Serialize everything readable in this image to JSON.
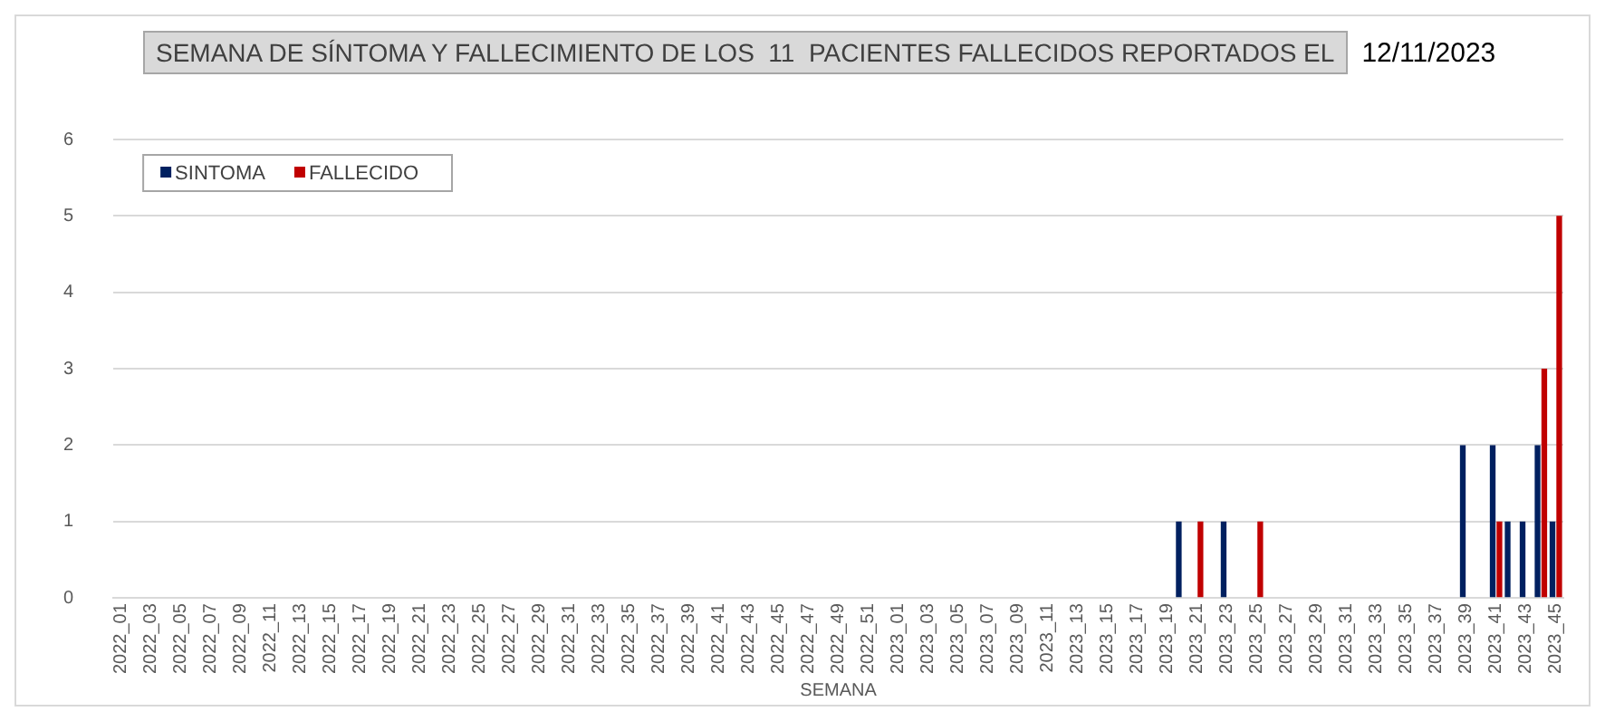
{
  "chart_data": {
    "type": "bar",
    "title": "SEMANA DE SÍNTOMA Y FALLECIMIENTO DE LOS  11  PACIENTES FALLECIDOS REPORTADOS EL",
    "subtitle": "12/11/2023",
    "xlabel": "SEMANA",
    "categories": [
      "2022_01",
      null,
      "2022_03",
      null,
      "2022_05",
      null,
      "2022_07",
      null,
      "2022_09",
      null,
      "2022_11",
      null,
      "2022_13",
      null,
      "2022_15",
      null,
      "2022_17",
      null,
      "2022_19",
      null,
      "2022_21",
      null,
      "2022_23",
      null,
      "2022_25",
      null,
      "2022_27",
      null,
      "2022_29",
      null,
      "2022_31",
      null,
      "2022_33",
      null,
      "2022_35",
      null,
      "2022_37",
      null,
      "2022_39",
      null,
      "2022_41",
      null,
      "2022_43",
      null,
      "2022_45",
      null,
      "2022_47",
      null,
      "2022_49",
      null,
      "2022_51",
      null,
      "2023_01",
      null,
      "2023_03",
      null,
      "2023_05",
      null,
      "2023_07",
      null,
      "2023_09",
      null,
      "2023_11",
      null,
      "2023_13",
      null,
      "2023_15",
      null,
      "2023_17",
      null,
      "2023_19",
      null,
      "2023_21",
      null,
      "2023_23",
      null,
      "2023_25",
      null,
      "2023_27",
      null,
      "2023_29",
      null,
      "2023_31",
      null,
      "2023_33",
      null,
      "2023_35",
      null,
      "2023_37",
      null,
      "2023_39",
      null,
      "2023_41",
      null,
      "2023_43",
      null,
      "2023_45"
    ],
    "series": [
      {
        "name": "SINTOMA",
        "color": "#002060",
        "values": [
          0,
          0,
          0,
          0,
          0,
          0,
          0,
          0,
          0,
          0,
          0,
          0,
          0,
          0,
          0,
          0,
          0,
          0,
          0,
          0,
          0,
          0,
          0,
          0,
          0,
          0,
          0,
          0,
          0,
          0,
          0,
          0,
          0,
          0,
          0,
          0,
          0,
          0,
          0,
          0,
          0,
          0,
          0,
          0,
          0,
          0,
          0,
          0,
          0,
          0,
          0,
          0,
          0,
          0,
          0,
          0,
          0,
          0,
          0,
          0,
          0,
          0,
          0,
          0,
          0,
          0,
          0,
          0,
          0,
          0,
          0,
          1,
          0,
          0,
          1,
          0,
          0,
          0,
          0,
          0,
          0,
          0,
          0,
          0,
          0,
          0,
          0,
          0,
          0,
          0,
          2,
          0,
          2,
          1,
          1,
          2,
          1
        ]
      },
      {
        "name": "FALLECIDO",
        "color": "#c00000",
        "values": [
          0,
          0,
          0,
          0,
          0,
          0,
          0,
          0,
          0,
          0,
          0,
          0,
          0,
          0,
          0,
          0,
          0,
          0,
          0,
          0,
          0,
          0,
          0,
          0,
          0,
          0,
          0,
          0,
          0,
          0,
          0,
          0,
          0,
          0,
          0,
          0,
          0,
          0,
          0,
          0,
          0,
          0,
          0,
          0,
          0,
          0,
          0,
          0,
          0,
          0,
          0,
          0,
          0,
          0,
          0,
          0,
          0,
          0,
          0,
          0,
          0,
          0,
          0,
          0,
          0,
          0,
          0,
          0,
          0,
          0,
          0,
          0,
          1,
          0,
          0,
          0,
          1,
          0,
          0,
          0,
          0,
          0,
          0,
          0,
          0,
          0,
          0,
          0,
          0,
          0,
          0,
          0,
          1,
          0,
          0,
          3,
          5
        ]
      }
    ],
    "ylim": [
      0,
      6
    ],
    "yticks": [
      0,
      1,
      2,
      3,
      4,
      5,
      6
    ],
    "grid": "y",
    "legend": "top left"
  }
}
